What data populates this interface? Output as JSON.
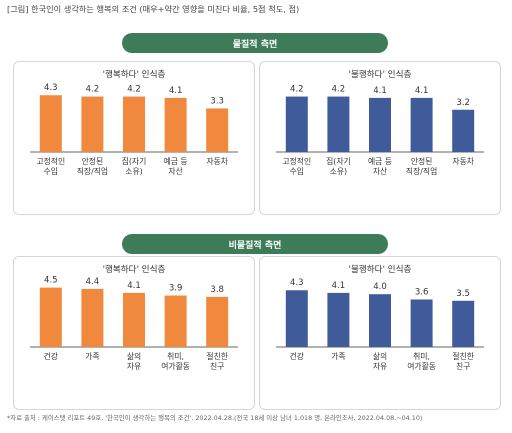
{
  "figure_title": "[그림] 한국인이 생각하는 행복의 조건 (매우+약간 영향을 미친다 비율, 5점 척도, 점)",
  "sections": [
    {
      "label": "물질적 측면"
    },
    {
      "label": "비물질적 측면"
    }
  ],
  "colors": {
    "banner": "#3e7b58",
    "happy_bar": "#f0893e",
    "unhappy_bar": "#3f5b9a",
    "axis": "#666666"
  },
  "chart_data": [
    {
      "type": "bar",
      "title": "'행복하다' 인식층",
      "categories": [
        "고정적인\n수입",
        "안정된\n직장/직업",
        "집(자기\n소유)",
        "예금 등\n자산",
        "자동차"
      ],
      "values": [
        4.3,
        4.2,
        4.2,
        4.1,
        3.3
      ],
      "color": "#f0893e"
    },
    {
      "type": "bar",
      "title": "'불행하다' 인식층",
      "categories": [
        "고정적인\n수입",
        "집(자기\n소유)",
        "예금 등\n자산",
        "안정된\n직장/직업",
        "자동차"
      ],
      "values": [
        4.2,
        4.2,
        4.1,
        4.1,
        3.2
      ],
      "color": "#3f5b9a"
    },
    {
      "type": "bar",
      "title": "'행복하다' 인식층",
      "categories": [
        "건강",
        "가족",
        "삶의\n자유",
        "취미,\n여가활동",
        "절친한\n친구"
      ],
      "values": [
        4.5,
        4.4,
        4.1,
        3.9,
        3.8
      ],
      "color": "#f0893e"
    },
    {
      "type": "bar",
      "title": "'불행하다' 인식층",
      "categories": [
        "건강",
        "가족",
        "삶의\n자유",
        "취미,\n여가활동",
        "절친한\n친구"
      ],
      "values": [
        4.3,
        4.1,
        4.0,
        3.6,
        3.5
      ],
      "color": "#3f5b9a"
    }
  ],
  "footnote": "*자료 출처 : 케이스탯 리포트 49호, '한국인이 생각하는 행복의 조건', 2022.04.28.(전국 18세 이상 남녀 1,018 명, 온라인조사, 2022.04.08.~04.10)"
}
